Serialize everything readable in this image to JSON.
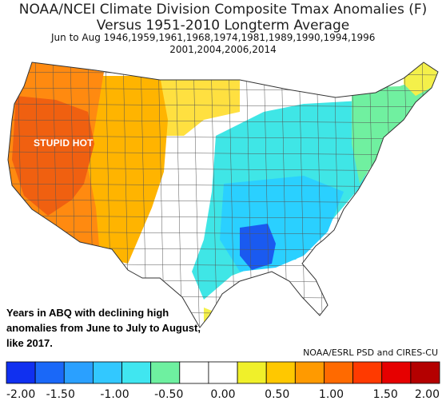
{
  "title_line1": "NOAA/NCEI Climate Division Composite Tmax Anomalies (F)",
  "title_line2": "Versus 1951-2010 Longterm Average",
  "subtitle_line1": "Jun to Aug   1946,1959,1961,1968,1974,1981,1989,1990,1994,1996",
  "subtitle_line2": "2001,2004,2006,2014",
  "annotation_hot": "STUPID HOT",
  "annotation_note": "Years in ABQ with declining high anomalies from June to July to August, like 2017.",
  "credit": "NOAA/ESRL PSD and CIRES-CU",
  "legend": {
    "colors": [
      "#1030f0",
      "#1a68f8",
      "#2aa0ff",
      "#32c8ff",
      "#40e6f0",
      "#6ef0a0",
      "#ffffff",
      "#ffffff",
      "#f0f02a",
      "#ffc800",
      "#ff9a00",
      "#ff6a00",
      "#ff3a00",
      "#e60000",
      "#b40000"
    ],
    "labels": [
      "-2.00",
      "-1.50",
      "-1.00",
      "-0.50",
      "0.00",
      "0.50",
      "1.00",
      "1.50",
      "2.00"
    ]
  },
  "regions": {
    "west_extreme": "#f06010",
    "west": "#ff8a10",
    "rockies": "#ffb400",
    "plains_north": "#ffe040",
    "plains_mid": "#ffffff",
    "east_mid": "#3fe6e6",
    "southeast": "#2ad0ff",
    "lower_miss": "#1a5af0",
    "northeast": "#70f0a0",
    "maine": "#f4f04a"
  }
}
